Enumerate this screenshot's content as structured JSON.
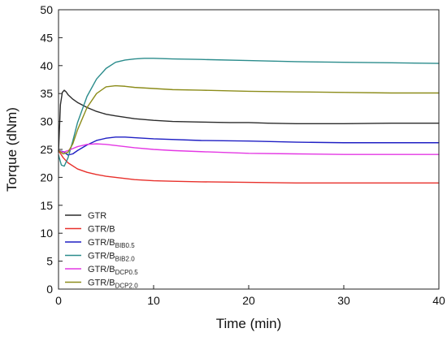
{
  "chart_data": {
    "type": "line",
    "xlabel": "Time (min)",
    "ylabel": "Torque (dNm)",
    "xlim": [
      0,
      40
    ],
    "ylim": [
      0,
      50
    ],
    "x_ticks": [
      0,
      10,
      20,
      30,
      40
    ],
    "y_ticks": [
      0,
      5,
      10,
      15,
      20,
      25,
      30,
      35,
      40,
      45,
      50
    ],
    "grid": false,
    "legend_position": "bottom-left",
    "series": [
      {
        "name": "GTR",
        "name_main": "GTR",
        "name_sub": "",
        "color": "#2b2b2b",
        "x": [
          0,
          0.2,
          0.4,
          0.6,
          0.8,
          1,
          1.5,
          2,
          3,
          4,
          5,
          6,
          8,
          10,
          12,
          15,
          18,
          20,
          22,
          25,
          30,
          35,
          40
        ],
        "y": [
          24.5,
          33,
          35.2,
          35.6,
          35.3,
          34.8,
          34,
          33.4,
          32.5,
          31.8,
          31.3,
          31,
          30.5,
          30.2,
          30,
          29.9,
          29.8,
          29.8,
          29.7,
          29.6,
          29.6,
          29.7,
          29.7
        ]
      },
      {
        "name": "GTR/B",
        "name_main": "GTR/B",
        "name_sub": "",
        "color": "#e8302b",
        "x": [
          0,
          0.5,
          1,
          2,
          3,
          4,
          5,
          6,
          8,
          10,
          12,
          15,
          20,
          25,
          30,
          35,
          40
        ],
        "y": [
          24.8,
          23.5,
          22.6,
          21.5,
          20.9,
          20.5,
          20.2,
          20,
          19.6,
          19.4,
          19.3,
          19.2,
          19.1,
          19,
          19,
          19,
          19
        ]
      },
      {
        "name": "GTR/B BIB0.5",
        "name_main": "GTR/B",
        "name_sub": "BIB0.5",
        "color": "#1f1fc4",
        "x": [
          0,
          0.5,
          1,
          1.5,
          2,
          3,
          4,
          5,
          6,
          7,
          8,
          10,
          15,
          20,
          25,
          30,
          35,
          40
        ],
        "y": [
          24.8,
          24.6,
          24,
          24.2,
          24.8,
          25.8,
          26.6,
          27,
          27.2,
          27.2,
          27.1,
          26.9,
          26.6,
          26.5,
          26.3,
          26.2,
          26.2,
          26.2
        ]
      },
      {
        "name": "GTR/B BIB2.0",
        "name_main": "GTR/B",
        "name_sub": "BIB2.0",
        "color": "#2b8c8c",
        "x": [
          0,
          0.3,
          0.6,
          1,
          1.5,
          2,
          3,
          4,
          5,
          6,
          7,
          8,
          9,
          10,
          12,
          15,
          20,
          25,
          30,
          35,
          40
        ],
        "y": [
          24,
          22.2,
          22,
          23.5,
          26.5,
          29.8,
          34.5,
          37.6,
          39.5,
          40.6,
          41,
          41.2,
          41.3,
          41.3,
          41.2,
          41.1,
          40.9,
          40.7,
          40.6,
          40.5,
          40.4
        ]
      },
      {
        "name": "GTR/B DCP0.5",
        "name_main": "GTR/B",
        "name_sub": "DCP0.5",
        "color": "#e438e4",
        "x": [
          0,
          0.5,
          1,
          2,
          3,
          4,
          5,
          6,
          8,
          10,
          12,
          15,
          20,
          25,
          30,
          35,
          40
        ],
        "y": [
          24.8,
          24.5,
          24.8,
          25.5,
          25.9,
          26,
          25.9,
          25.7,
          25.3,
          25,
          24.8,
          24.6,
          24.3,
          24.2,
          24.1,
          24.1,
          24.1
        ]
      },
      {
        "name": "GTR/B DCP2.0",
        "name_main": "GTR/B",
        "name_sub": "DCP2.0",
        "color": "#8c8c1a",
        "x": [
          0,
          0.5,
          1,
          1.5,
          2,
          3,
          4,
          5,
          6,
          7,
          8,
          10,
          12,
          15,
          20,
          25,
          30,
          35,
          40
        ],
        "y": [
          24.8,
          24.2,
          24.5,
          26,
          28.5,
          32.5,
          35,
          36.2,
          36.4,
          36.3,
          36.1,
          35.9,
          35.7,
          35.6,
          35.4,
          35.3,
          35.2,
          35.1,
          35.1
        ]
      }
    ]
  }
}
